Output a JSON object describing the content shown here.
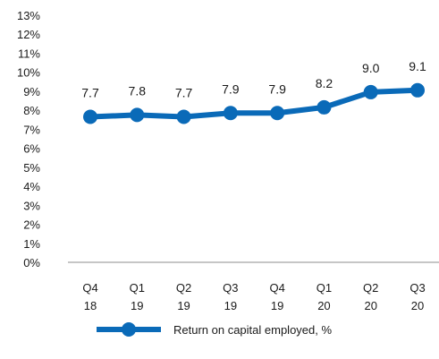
{
  "chart_data": {
    "type": "line",
    "categories": [
      "Q4\n18",
      "Q1\n19",
      "Q2\n19",
      "Q3\n19",
      "Q4\n19",
      "Q1\n20",
      "Q2\n20",
      "Q3\n20"
    ],
    "series": [
      {
        "name": "Return on capital employed, %",
        "values": [
          7.7,
          7.8,
          7.7,
          7.9,
          7.9,
          8.2,
          9.0,
          9.1
        ],
        "labels": [
          "7.7",
          "7.8",
          "7.7",
          "7.9",
          "7.9",
          "8.2",
          "9.0",
          "9.1"
        ],
        "color": "#0a6ab8"
      }
    ],
    "y_ticks": [
      "0%",
      "1%",
      "2%",
      "3%",
      "4%",
      "5%",
      "6%",
      "7%",
      "8%",
      "9%",
      "10%",
      "11%",
      "12%",
      "13%"
    ],
    "ylim": [
      0,
      13
    ],
    "grid": false,
    "legend_position": "bottom-center",
    "title": "",
    "xlabel": "",
    "ylabel": ""
  }
}
